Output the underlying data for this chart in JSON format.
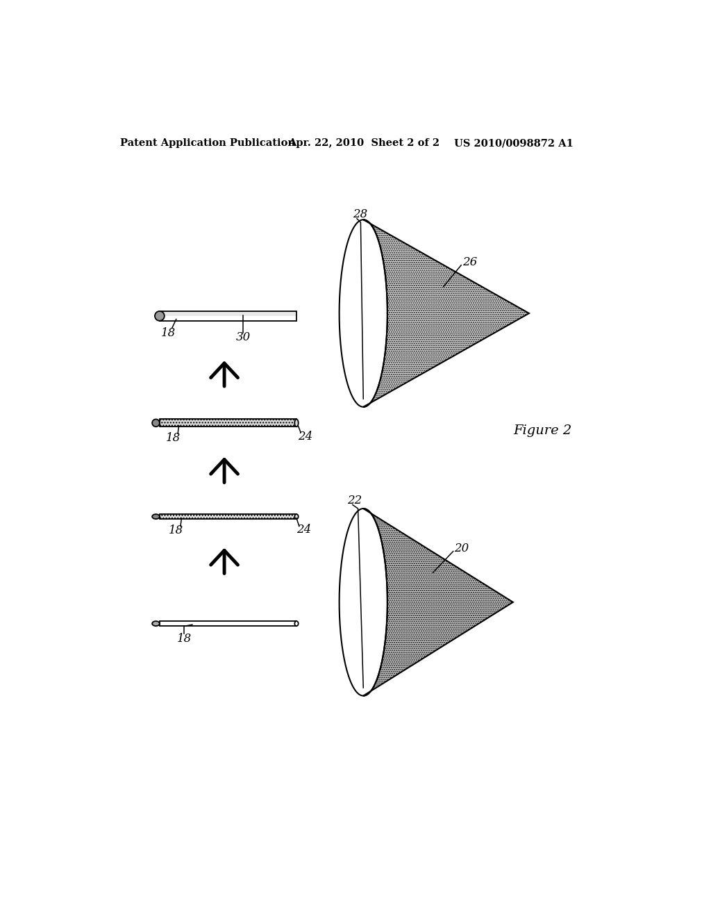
{
  "bg_color": "#ffffff",
  "header_left": "Patent Application Publication",
  "header_center": "Apr. 22, 2010  Sheet 2 of 2",
  "header_right": "US 2010/0098872 A1",
  "figure_label": "Figure 2",
  "bar_gray": "#aaaaaa",
  "bar_hatch_gray": "#cccccc",
  "cone_dot_fill": "#d8d8d8",
  "cone_hatch_fill": "#c0c0c0"
}
